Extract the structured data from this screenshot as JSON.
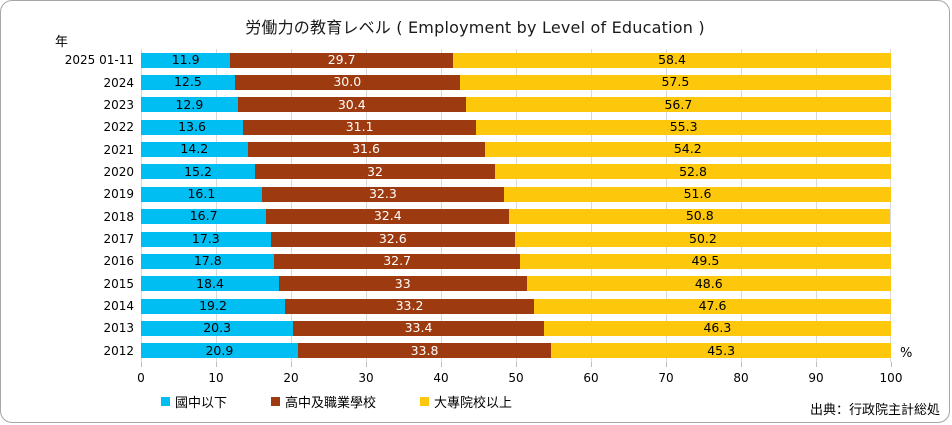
{
  "title": "労働力の教育レベル ( Employment by Level of Education )",
  "axis": {
    "y_unit_label": "年",
    "x_unit_label": "%",
    "x_ticks": [
      "0",
      "10",
      "20",
      "30",
      "40",
      "50",
      "60",
      "70",
      "80",
      "90",
      "100"
    ],
    "xlim": [
      0,
      100
    ]
  },
  "source": "出典：行政院主計総処",
  "colors": {
    "grid": "#d9d9d9",
    "tick": "#bfbfbf",
    "series_cyan": "#00bef2",
    "series_brown": "#9e3a0f",
    "series_yellow": "#fdc70c"
  },
  "chart_data": {
    "type": "bar",
    "orientation": "horizontal",
    "stacked": true,
    "grid": true,
    "legend_position": "bottom",
    "title": "労働力の教育レベル ( Employment by Level of Education )",
    "xlabel": "%",
    "ylabel": "年",
    "xlim": [
      0,
      100
    ],
    "categories": [
      "2025 01-11",
      "2024",
      "2023",
      "2022",
      "2021",
      "2020",
      "2019",
      "2018",
      "2017",
      "2016",
      "2015",
      "2014",
      "2013",
      "2012"
    ],
    "series": [
      {
        "name": "國中以下",
        "color": "#00bef2",
        "text_color": "#000000",
        "values": [
          11.9,
          12.5,
          12.9,
          13.6,
          14.2,
          15.2,
          16.1,
          16.7,
          17.3,
          17.8,
          18.4,
          19.2,
          20.3,
          20.9
        ],
        "labels": [
          "11.9",
          "12.5",
          "12.9",
          "13.6",
          "14.2",
          "15.2",
          "16.1",
          "16.7",
          "17.3",
          "17.8",
          "18.4",
          "19.2",
          "20.3",
          "20.9"
        ]
      },
      {
        "name": "高中及職業學校",
        "color": "#9e3a0f",
        "text_color": "#ffffff",
        "values": [
          29.7,
          30.0,
          30.4,
          31.1,
          31.6,
          32,
          32.3,
          32.4,
          32.6,
          32.7,
          33,
          33.2,
          33.4,
          33.8
        ],
        "labels": [
          "29.7",
          "30.0",
          "30.4",
          "31.1",
          "31.6",
          "32",
          "32.3",
          "32.4",
          "32.6",
          "32.7",
          "33",
          "33.2",
          "33.4",
          "33.8"
        ]
      },
      {
        "name": "大專院校以上",
        "color": "#fdc70c",
        "text_color": "#000000",
        "values": [
          58.4,
          57.5,
          56.7,
          55.3,
          54.2,
          52.8,
          51.6,
          50.8,
          50.2,
          49.5,
          48.6,
          47.6,
          46.3,
          45.3
        ],
        "labels": [
          "58.4",
          "57.5",
          "56.7",
          "55.3",
          "54.2",
          "52.8",
          "51.6",
          "50.8",
          "50.2",
          "49.5",
          "48.6",
          "47.6",
          "46.3",
          "45.3"
        ]
      }
    ]
  }
}
